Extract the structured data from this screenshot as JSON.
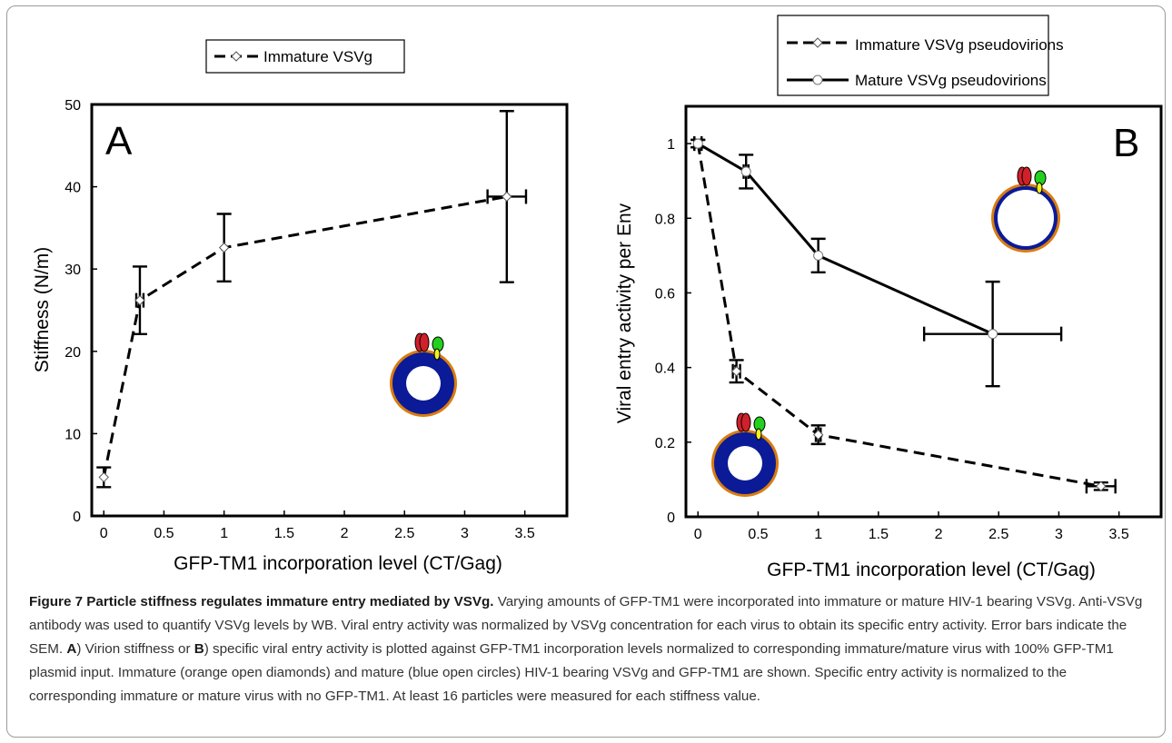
{
  "chart_data": [
    {
      "panel": "A",
      "type": "line",
      "xlabel": "GFP-TM1 incorporation level (CT/Gag)",
      "ylabel": "Stiffness (N/m)",
      "xlim": [
        -0.1,
        3.85
      ],
      "ylim": [
        0,
        50
      ],
      "xticks": [
        "0",
        "0.5",
        "1",
        "1.5",
        "2",
        "2.5",
        "3",
        "3.5"
      ],
      "yticks": [
        "0",
        "10",
        "20",
        "30",
        "40",
        "50"
      ],
      "grid": false,
      "legend_position": "top-center",
      "series": [
        {
          "name": "Immature VSVg",
          "line": "dashed",
          "marker": "open-diamond",
          "points": [
            {
              "x": 0.0,
              "y": 4.7,
              "xerr": 0.0,
              "yerr": 1.2
            },
            {
              "x": 0.3,
              "y": 26.2,
              "xerr": 0.03,
              "yerr": 4.1
            },
            {
              "x": 1.0,
              "y": 32.6,
              "xerr": 0.0,
              "yerr": 4.1
            },
            {
              "x": 3.35,
              "y": 38.8,
              "xerr": 0.16,
              "yerr": 10.4
            }
          ]
        }
      ]
    },
    {
      "panel": "B",
      "type": "line",
      "xlabel": "GFP-TM1 incorporation level (CT/Gag)",
      "ylabel": "Viral entry activity per Env",
      "xlim": [
        -0.1,
        3.85
      ],
      "ylim": [
        0,
        1.1
      ],
      "xticks": [
        "0",
        "0.5",
        "1",
        "1.5",
        "2",
        "2.5",
        "3",
        "3.5"
      ],
      "yticks": [
        "0",
        "0.2",
        "0.4",
        "0.6",
        "0.8",
        "1"
      ],
      "grid": false,
      "legend_position": "top-center",
      "series": [
        {
          "name": "Immature VSVg pseudovirions",
          "line": "dashed",
          "marker": "open-diamond",
          "points": [
            {
              "x": 0.0,
              "y": 1.0,
              "xerr": 0.03,
              "yerr": 0.01
            },
            {
              "x": 0.32,
              "y": 0.39,
              "xerr": 0.03,
              "yerr": 0.03
            },
            {
              "x": 1.0,
              "y": 0.22,
              "xerr": 0.02,
              "yerr": 0.025
            },
            {
              "x": 3.35,
              "y": 0.082,
              "xerr": 0.12,
              "yerr": 0.01
            }
          ]
        },
        {
          "name": "Mature VSVg pseudovirions",
          "line": "solid",
          "marker": "open-circle",
          "points": [
            {
              "x": 0.0,
              "y": 1.0,
              "xerr": 0.03,
              "yerr": 0.01
            },
            {
              "x": 0.4,
              "y": 0.925,
              "xerr": 0.02,
              "yerr": 0.045
            },
            {
              "x": 1.0,
              "y": 0.7,
              "xerr": 0.0,
              "yerr": 0.045
            },
            {
              "x": 2.45,
              "y": 0.49,
              "xerr": 0.57,
              "yerr": 0.14
            }
          ]
        }
      ]
    }
  ],
  "panel_labels": {
    "a": "A",
    "b": "B"
  },
  "caption": {
    "title": "Figure 7 Particle stiffness regulates immature entry mediated by VSVg.",
    "text_1": " Varying amounts of GFP-TM1 were incorporated into immature or mature HIV-1 bearing VSVg. Anti-VSVg antibody was used to quantify VSVg levels by WB. Viral entry activity was normalized by VSVg concentration for each virus to obtain its specific entry activity. Error bars indicate the SEM. ",
    "label_a": "A",
    "text_2": ") Virion stiffness or ",
    "label_b": "B",
    "text_3": ") specific viral entry activity is plotted against GFP-TM1 incorporation levels normalized to corresponding immature/mature virus with 100% GFP-TM1 plasmid input. Immature (orange open diamonds) and mature (blue open circles) HIV-1 bearing VSVg and GFP-TM1 are shown. Specific entry activity is normalized to the corresponding immature or mature virus with no GFP-TM1. At least 16 particles were measured for each stiffness value."
  },
  "colors": {
    "virion_ring": "#d97c10",
    "virion_core": "#0b1a96",
    "protein_red": "#d0202a",
    "protein_green": "#22d11e",
    "protein_yellow": "#f2f21a"
  }
}
